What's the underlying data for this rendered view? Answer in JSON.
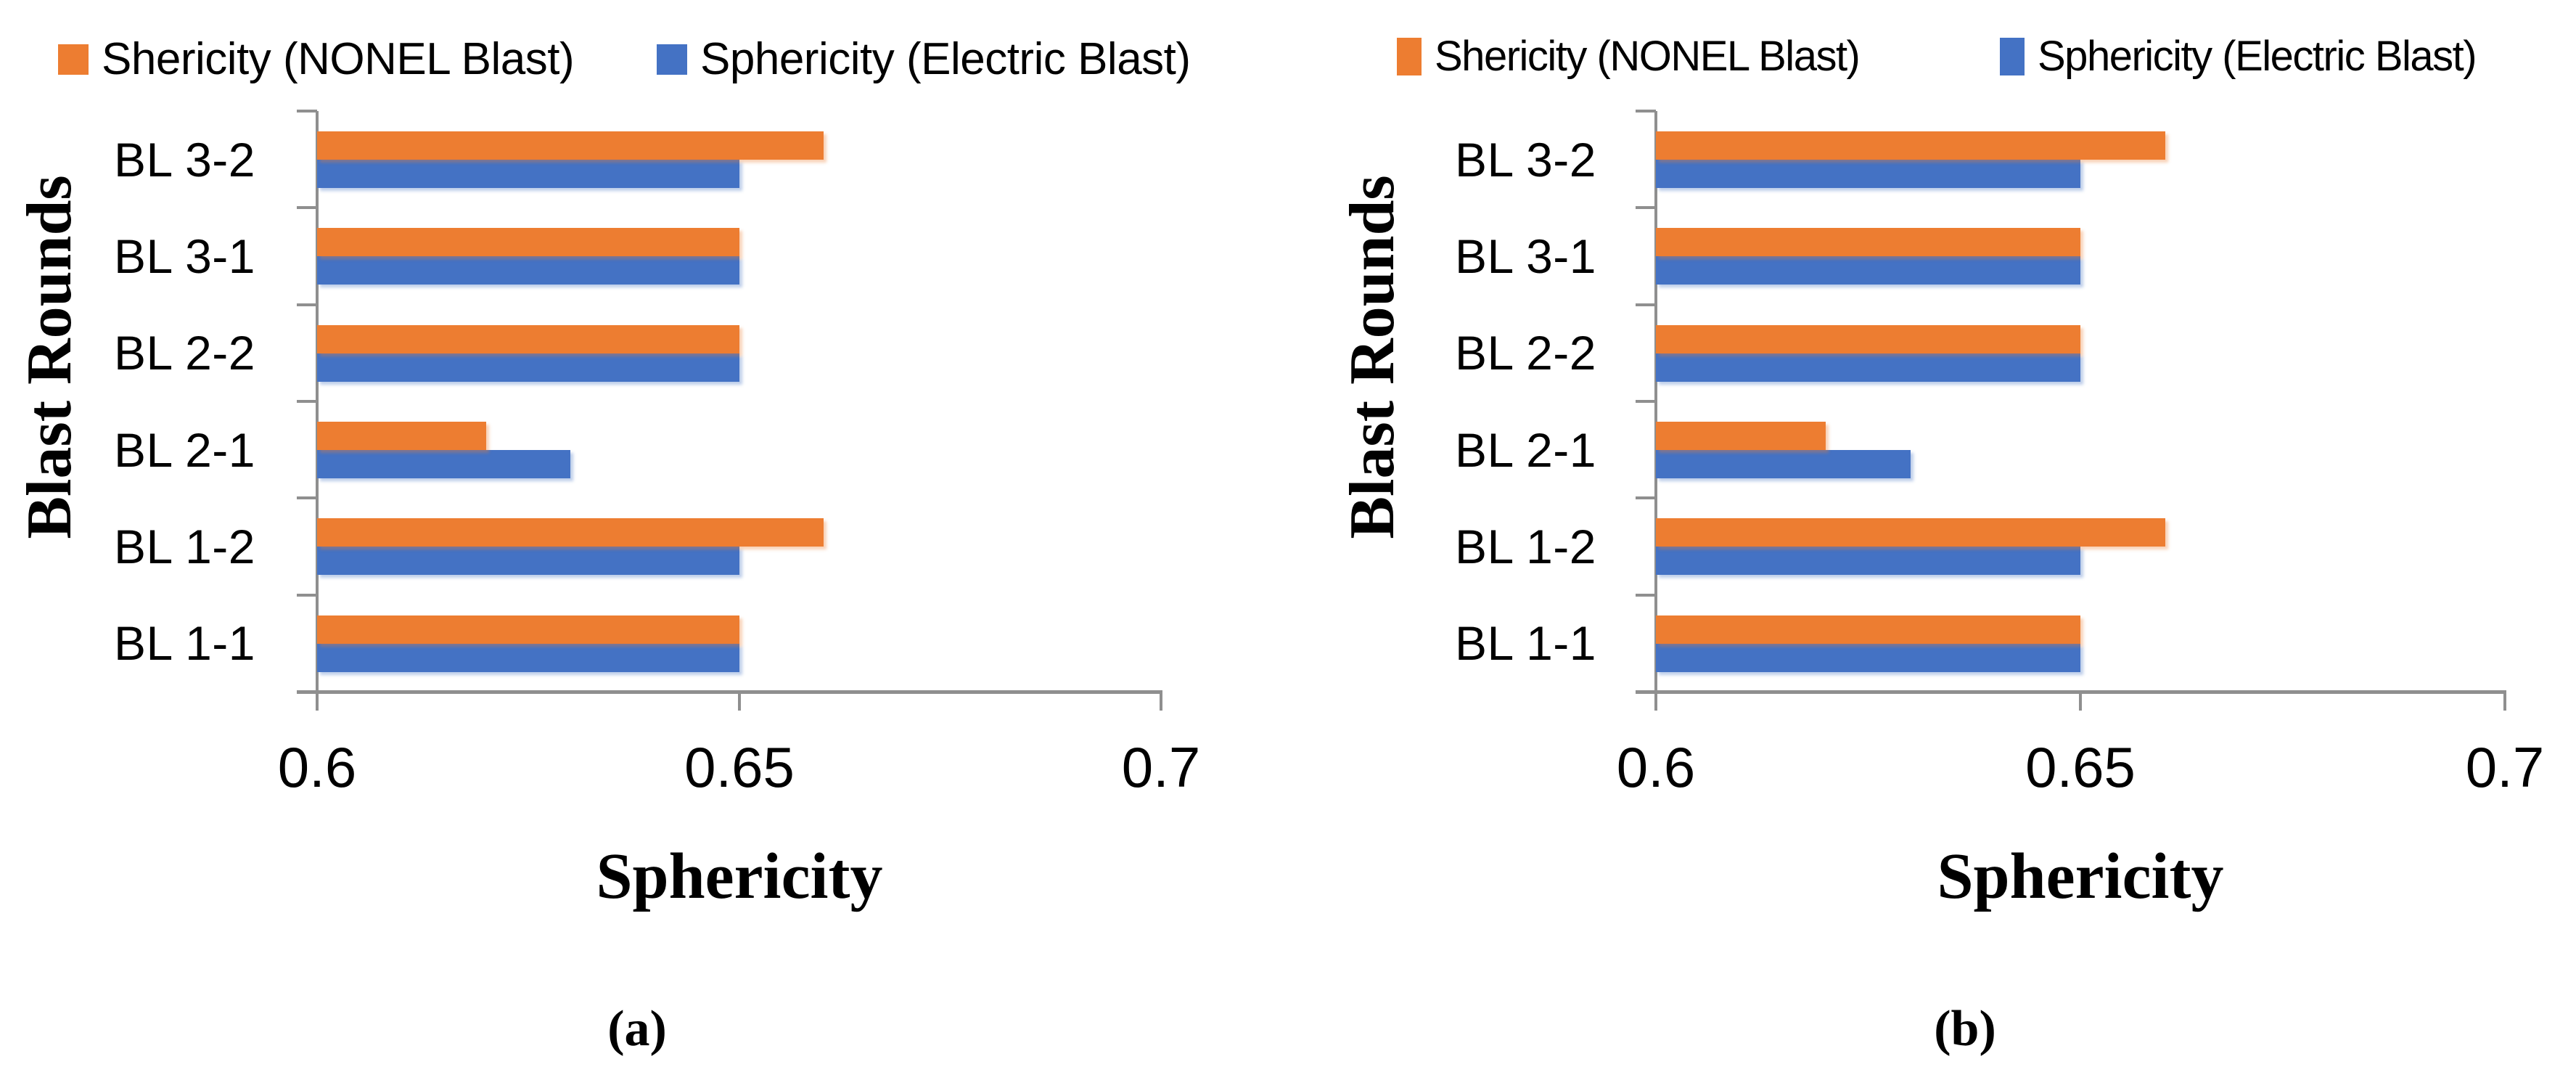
{
  "figure": {
    "background": "#ffffff",
    "axis_color": "#8f8f8f",
    "text_color": "#000000"
  },
  "chart_data": [
    {
      "id": "a",
      "type": "bar",
      "orientation": "horizontal",
      "caption": "(a)",
      "xlabel": "Sphericity",
      "ylabel": "Blast Rounds",
      "categories_top_to_bottom": [
        "BL 3-2",
        "BL 3-1",
        "BL 2-2",
        "BL 2-1",
        "BL 1-2",
        "BL 1-1"
      ],
      "series": [
        {
          "name": "Shericity (NONEL Blast)",
          "color": "#ED7D31",
          "values_top_to_bottom": [
            0.66,
            0.65,
            0.65,
            0.62,
            0.66,
            0.65
          ]
        },
        {
          "name": "Sphericity (Electric Blast)",
          "color": "#4472C4",
          "values_top_to_bottom": [
            0.65,
            0.65,
            0.65,
            0.63,
            0.65,
            0.65
          ]
        }
      ],
      "xlim": [
        0.6,
        0.7
      ],
      "xticks": [
        {
          "value": 0.6,
          "label": "0.6"
        },
        {
          "value": 0.65,
          "label": "0.65"
        },
        {
          "value": 0.7,
          "label": "0.7"
        }
      ],
      "grid": false,
      "legend_position": "top"
    },
    {
      "id": "b",
      "type": "bar",
      "orientation": "horizontal",
      "caption": "(b)",
      "xlabel": "Sphericity",
      "ylabel": "Blast Rounds",
      "categories_top_to_bottom": [
        "BL 3-2",
        "BL 3-1",
        "BL 2-2",
        "BL 2-1",
        "BL 1-2",
        "BL 1-1"
      ],
      "series": [
        {
          "name": "Shericity (NONEL Blast)",
          "color": "#ED7D31",
          "values_top_to_bottom": [
            0.66,
            0.65,
            0.65,
            0.62,
            0.66,
            0.65
          ]
        },
        {
          "name": "Sphericity (Electric Blast)",
          "color": "#4472C4",
          "values_top_to_bottom": [
            0.65,
            0.65,
            0.65,
            0.63,
            0.65,
            0.65
          ]
        }
      ],
      "xlim": [
        0.6,
        0.7
      ],
      "xticks": [
        {
          "value": 0.6,
          "label": "0.6"
        },
        {
          "value": 0.65,
          "label": "0.65"
        },
        {
          "value": 0.7,
          "label": "0.7"
        }
      ],
      "grid": false,
      "legend_position": "top"
    }
  ]
}
